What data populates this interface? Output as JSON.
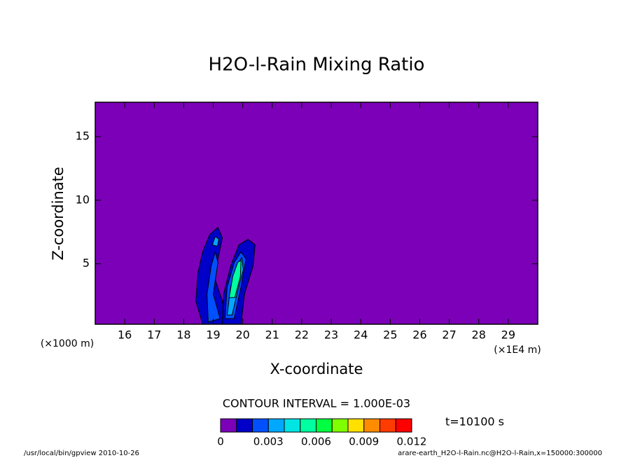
{
  "chart_data": {
    "type": "contour",
    "title": "H2O-l-Rain Mixing Ratio",
    "x_label": "X-coordinate",
    "y_label": "Z-coordinate",
    "x_unit": "(×1E4 m)",
    "y_unit": "(×1000 m)",
    "xlim": [
      15,
      30
    ],
    "xticks": [
      16,
      17,
      18,
      19,
      20,
      21,
      22,
      23,
      24,
      25,
      26,
      27,
      28,
      29
    ],
    "ylim": [
      0.25,
      17.7
    ],
    "yticks": [
      5,
      10,
      15
    ],
    "contour_interval": "CONTOUR INTERVAL = 1.000E-03",
    "time_label": "t=10100 s",
    "levels": [
      0,
      0.001,
      0.002,
      0.003,
      0.004,
      0.005,
      0.006,
      0.007,
      0.008,
      0.009,
      0.01,
      0.011,
      0.012
    ],
    "colors": [
      "#7c00b8",
      "#0000c8",
      "#0050ff",
      "#00a8ff",
      "#00e4e4",
      "#00ffa0",
      "#00ff40",
      "#80ff00",
      "#ffe000",
      "#ff8c00",
      "#ff3c00",
      "#ff0000",
      "#ffa0a0"
    ],
    "colorbar_ticks": [
      0,
      0.003,
      0.006,
      0.009,
      0.012
    ],
    "contours": [
      {
        "level": 1,
        "x": [
          18.64,
          18.41,
          18.48,
          18.64,
          18.88,
          19.16,
          19.31,
          19.16,
          19.07,
          19.31,
          19.47
        ],
        "z": [
          0.25,
          2.07,
          4.28,
          5.93,
          7.31,
          7.87,
          7.04,
          5.38,
          3.73,
          2.07,
          0.25
        ]
      },
      {
        "level": 1,
        "x": [
          19.31,
          19.35,
          19.59,
          19.87,
          20.18,
          20.42,
          20.35,
          20.06,
          19.94
        ],
        "z": [
          0.25,
          2.62,
          4.83,
          6.49,
          6.93,
          6.49,
          4.83,
          2.62,
          0.25
        ]
      },
      {
        "level": 2,
        "x": [
          18.83,
          18.79,
          18.93,
          19.07,
          19.16,
          19.0,
          19.23
        ],
        "z": [
          0.42,
          2.62,
          4.83,
          5.93,
          5.11,
          2.62,
          0.69
        ]
      },
      {
        "level": 2,
        "x": [
          19.4,
          19.47,
          19.71,
          19.94,
          20.11,
          19.94,
          19.71
        ],
        "z": [
          0.69,
          3.17,
          5.11,
          5.93,
          5.38,
          3.17,
          0.69
        ]
      },
      {
        "level": 3,
        "x": [
          19.47,
          19.59,
          19.78,
          19.97,
          20.02,
          19.83,
          19.64
        ],
        "z": [
          0.97,
          3.17,
          4.83,
          5.49,
          4.55,
          2.9,
          0.97
        ]
      },
      {
        "level": 5,
        "x": [
          19.54,
          19.66,
          19.83,
          19.94,
          19.92,
          19.73
        ],
        "z": [
          2.35,
          4.0,
          5.11,
          5.27,
          4.0,
          2.35
        ]
      },
      {
        "level": 3,
        "x": [
          18.97,
          19.07,
          19.19,
          19.14
        ],
        "z": [
          6.49,
          7.15,
          6.93,
          6.38
        ]
      }
    ],
    "footer_left": "/usr/local/bin/gpview  2010-10-26",
    "footer_right": "arare-earth_H2O-l-Rain.nc@H2O-l-Rain,x=150000:300000"
  }
}
